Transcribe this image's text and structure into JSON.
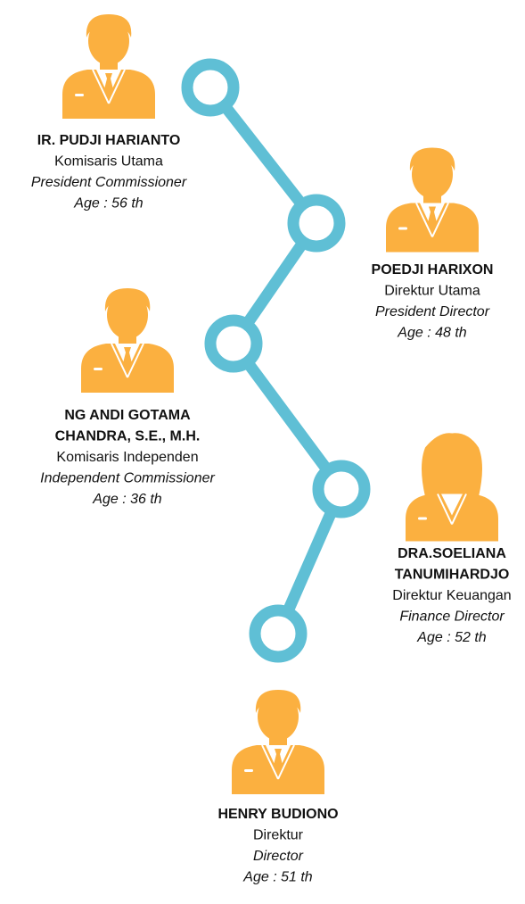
{
  "people": [
    {
      "name": [
        "IR. PUDJI HARIANTO"
      ],
      "role": "Komisaris Utama",
      "role_en": "President Commissioner",
      "age": "Age : 56 th"
    },
    {
      "name": [
        "POEDJI HARIXON"
      ],
      "role": "Direktur Utama",
      "role_en": "President Director",
      "age": "Age : 48 th"
    },
    {
      "name": [
        "NG ANDI GOTAMA",
        "CHANDRA, S.E., M.H."
      ],
      "role": "Komisaris Independen",
      "role_en": "Independent Commissioner",
      "age": "Age : 36 th"
    },
    {
      "name": [
        "DRA.SOELIANA",
        "TANUMIHARDJO"
      ],
      "role": "Direktur Keuangan",
      "role_en": "Finance Director",
      "age": "Age : 52 th"
    },
    {
      "name": [
        "HENRY BUDIONO"
      ],
      "role": "Direktur",
      "role_en": "Director",
      "age": "Age : 51 th"
    }
  ]
}
